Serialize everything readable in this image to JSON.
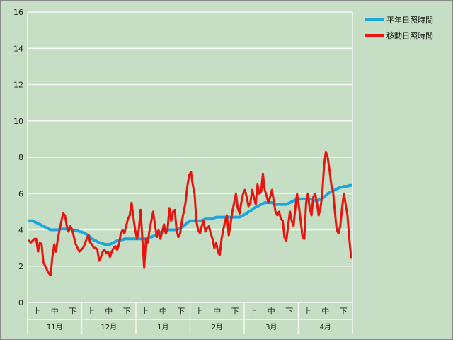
{
  "chart_data": {
    "type": "line",
    "title": "",
    "xlabel": "",
    "ylabel": "",
    "ylim": [
      0,
      16
    ],
    "yticks": [
      0,
      2,
      4,
      6,
      8,
      10,
      12,
      14,
      16
    ],
    "grid": true,
    "legend_position": "top-right",
    "months": [
      "11月",
      "12月",
      "1月",
      "2月",
      "3月",
      "4月"
    ],
    "dekads": [
      "上",
      "中",
      "下"
    ],
    "x_points_per_month": 30,
    "series": [
      {
        "name": "平年日照時間",
        "color": "#1aa7e0",
        "values": [
          4.5,
          4.5,
          4.5,
          4.45,
          4.4,
          4.35,
          4.3,
          4.25,
          4.2,
          4.15,
          4.1,
          4.05,
          4.0,
          4.0,
          4.0,
          4.0,
          4.0,
          4.05,
          4.05,
          4.05,
          4.05,
          4.05,
          4.05,
          4.05,
          4.0,
          4.0,
          3.95,
          3.95,
          3.9,
          3.9,
          3.85,
          3.8,
          3.75,
          3.7,
          3.6,
          3.5,
          3.45,
          3.4,
          3.35,
          3.3,
          3.25,
          3.25,
          3.2,
          3.2,
          3.2,
          3.2,
          3.25,
          3.3,
          3.35,
          3.4,
          3.4,
          3.45,
          3.45,
          3.5,
          3.5,
          3.5,
          3.5,
          3.5,
          3.5,
          3.5,
          3.5,
          3.5,
          3.5,
          3.5,
          3.5,
          3.5,
          3.55,
          3.6,
          3.6,
          3.65,
          3.7,
          3.75,
          3.8,
          3.85,
          3.9,
          3.95,
          4.0,
          4.0,
          4.0,
          4.0,
          4.0,
          4.0,
          4.0,
          4.05,
          4.1,
          4.15,
          4.2,
          4.3,
          4.4,
          4.45,
          4.5,
          4.5,
          4.5,
          4.5,
          4.5,
          4.5,
          4.5,
          4.55,
          4.6,
          4.6,
          4.6,
          4.6,
          4.6,
          4.65,
          4.7,
          4.7,
          4.7,
          4.7,
          4.7,
          4.7,
          4.7,
          4.7,
          4.7,
          4.7,
          4.7,
          4.7,
          4.7,
          4.7,
          4.75,
          4.8,
          4.85,
          4.9,
          5.0,
          5.05,
          5.1,
          5.2,
          5.25,
          5.3,
          5.35,
          5.4,
          5.45,
          5.5,
          5.5,
          5.5,
          5.5,
          5.5,
          5.45,
          5.4,
          5.4,
          5.4,
          5.4,
          5.4,
          5.4,
          5.4,
          5.45,
          5.5,
          5.55,
          5.6,
          5.65,
          5.7,
          5.7,
          5.7,
          5.7,
          5.7,
          5.7,
          5.7,
          5.7,
          5.7,
          5.65,
          5.6,
          5.6,
          5.65,
          5.7,
          5.75,
          5.8,
          5.9,
          6.0,
          6.05,
          6.1,
          6.15,
          6.2,
          6.25,
          6.3,
          6.35,
          6.35,
          6.4,
          6.4,
          6.4,
          6.45,
          6.45
        ]
      },
      {
        "name": "移動日照時間",
        "color": "#e8140f",
        "values": [
          3.4,
          3.3,
          3.4,
          3.5,
          3.5,
          2.8,
          3.3,
          3.2,
          2.2,
          2.0,
          1.8,
          1.6,
          1.5,
          2.5,
          3.2,
          2.8,
          3.5,
          4.0,
          4.5,
          4.9,
          4.8,
          4.2,
          3.9,
          4.2,
          4.0,
          3.6,
          3.2,
          3.0,
          2.8,
          2.9,
          3.0,
          3.2,
          3.5,
          3.7,
          3.3,
          3.2,
          3.0,
          3.0,
          2.9,
          2.3,
          2.5,
          2.8,
          2.9,
          2.7,
          2.8,
          2.5,
          2.8,
          3.0,
          3.1,
          2.9,
          3.2,
          3.8,
          4.0,
          3.8,
          4.2,
          4.6,
          4.8,
          5.5,
          4.7,
          4.0,
          3.5,
          4.0,
          5.1,
          3.5,
          1.9,
          3.5,
          3.3,
          4.0,
          4.5,
          5.0,
          4.3,
          3.6,
          4.0,
          3.5,
          3.9,
          4.3,
          3.8,
          4.0,
          5.2,
          4.5,
          5.0,
          5.1,
          4.0,
          3.6,
          3.8,
          4.5,
          5.0,
          5.5,
          6.4,
          7.0,
          7.2,
          6.5,
          6.0,
          4.5,
          4.0,
          3.8,
          4.2,
          4.5,
          3.9,
          4.1,
          4.2,
          3.8,
          3.5,
          3.0,
          3.3,
          2.8,
          2.6,
          3.5,
          4.0,
          4.5,
          4.8,
          3.7,
          4.3,
          5.0,
          5.5,
          6.0,
          5.2,
          4.9,
          5.5,
          6.0,
          6.2,
          5.8,
          5.3,
          5.5,
          6.2,
          5.8,
          5.4,
          6.5,
          6.0,
          6.1,
          7.1,
          6.2,
          5.9,
          5.5,
          5.8,
          6.2,
          5.6,
          5.0,
          4.8,
          5.0,
          4.6,
          4.5,
          3.6,
          3.4,
          4.2,
          5.0,
          4.5,
          4.2,
          5.2,
          6.0,
          5.3,
          4.5,
          3.6,
          3.5,
          5.5,
          6.0,
          5.2,
          4.8,
          5.8,
          6.0,
          5.5,
          4.8,
          5.2,
          6.0,
          7.6,
          8.3,
          8.0,
          7.3,
          6.5,
          6.1,
          5.0,
          4.0,
          3.8,
          4.2,
          5.2,
          6.0,
          5.4,
          4.8,
          3.5,
          2.5
        ]
      }
    ]
  }
}
